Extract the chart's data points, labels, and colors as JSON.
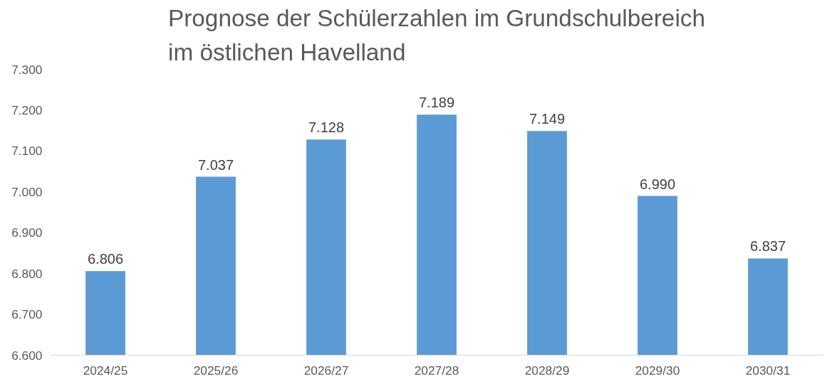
{
  "chart_data": {
    "type": "bar",
    "title": "Prognose der Schülerzahlen im Grundschulbereich\nim östlichen Havelland",
    "categories": [
      "2024/25",
      "2025/26",
      "2026/27",
      "2027/28",
      "2028/29",
      "2029/30",
      "2030/31"
    ],
    "values": [
      6806,
      7037,
      7128,
      7189,
      7149,
      6990,
      6837
    ],
    "value_labels": [
      "6.806",
      "7.037",
      "7.128",
      "7.189",
      "7.149",
      "6.990",
      "6.837"
    ],
    "color": "#5b9bd5",
    "ylim": [
      6600,
      7300
    ],
    "yticks": [
      {
        "value": 6600,
        "label": "6.600"
      },
      {
        "value": 6700,
        "label": "6.700"
      },
      {
        "value": 6800,
        "label": "6.800"
      },
      {
        "value": 6900,
        "label": "6.900"
      },
      {
        "value": 7000,
        "label": "7.000"
      },
      {
        "value": 7100,
        "label": "7.100"
      },
      {
        "value": 7200,
        "label": "7.200"
      },
      {
        "value": 7300,
        "label": "7.300"
      }
    ],
    "grid": false
  }
}
